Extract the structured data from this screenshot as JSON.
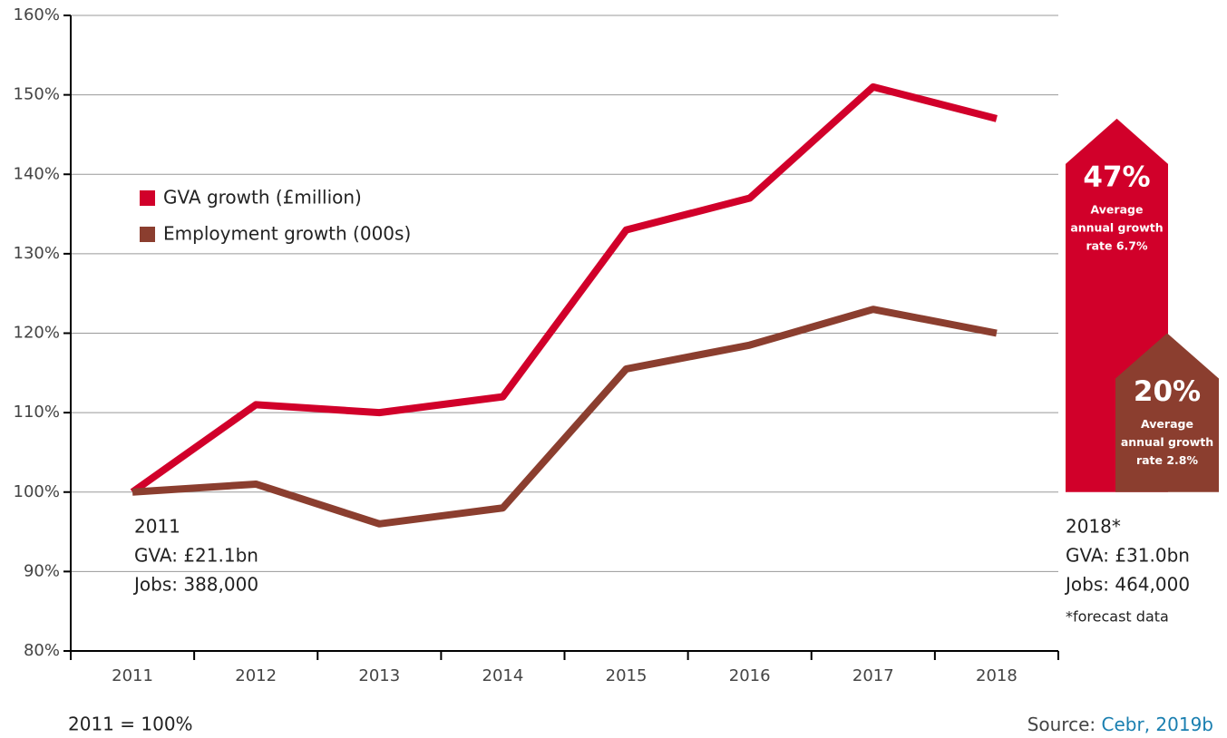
{
  "chart_data": {
    "type": "line",
    "categories": [
      "2011",
      "2012",
      "2013",
      "2014",
      "2015",
      "2016",
      "2017",
      "2018"
    ],
    "series": [
      {
        "name": "GVA growth (£million)",
        "color": "#d1002a",
        "values": [
          100,
          111,
          110,
          112,
          133,
          137,
          151,
          147
        ]
      },
      {
        "name": "Employment growth (000s)",
        "color": "#8b3e2f",
        "values": [
          100,
          101,
          96,
          98,
          115.5,
          118.5,
          123,
          120
        ]
      }
    ],
    "ylim": [
      80,
      160
    ],
    "yticks": [
      {
        "value": 80,
        "label": "80%"
      },
      {
        "value": 90,
        "label": "90%"
      },
      {
        "value": 100,
        "label": "100%"
      },
      {
        "value": 110,
        "label": "110%"
      },
      {
        "value": 120,
        "label": "120%"
      },
      {
        "value": 130,
        "label": "130%"
      },
      {
        "value": 140,
        "label": "140%"
      },
      {
        "value": 150,
        "label": "150%"
      },
      {
        "value": 160,
        "label": "160%"
      }
    ],
    "grid": true,
    "annotations": {
      "start": [
        "2011",
        "GVA: £21.1bn",
        "Jobs: 388,000"
      ],
      "end": [
        "2018*",
        "GVA: £31.0bn",
        "Jobs: 464,000"
      ],
      "end_note": "*forecast data",
      "gva_growth": {
        "headline": "47%",
        "lines": [
          "Average",
          "annual growth",
          "rate 6.7%"
        ]
      },
      "jobs_growth": {
        "headline": "20%",
        "lines": [
          "Average",
          "annual growth",
          "rate 2.8%"
        ]
      }
    },
    "footer": {
      "base": "2011 = 100%",
      "source_label": "Source: ",
      "source_link": "Cebr, 2019b"
    }
  }
}
